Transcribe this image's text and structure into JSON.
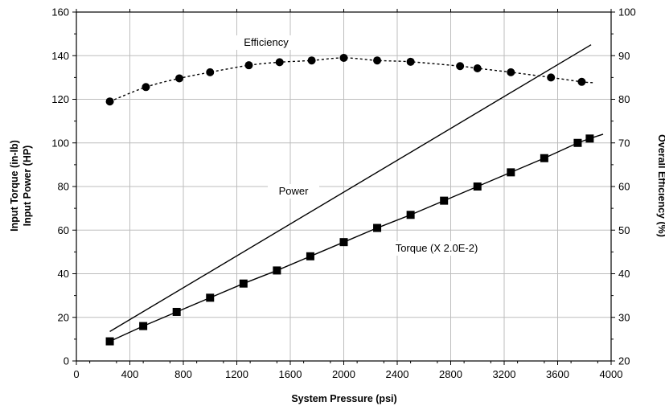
{
  "chart_data": {
    "type": "line",
    "xlabel": "System Pressure (psi)",
    "ylabel_left": [
      "Input Torque (in-lb)",
      "Input Power (HP)"
    ],
    "ylabel_right": "Overall Efficiency (%)",
    "xlim": [
      0,
      4000
    ],
    "ylim_left": [
      0,
      160
    ],
    "ylim_right": [
      20,
      100
    ],
    "x_ticks": [
      "0",
      "400",
      "800",
      "1200",
      "1600",
      "2000",
      "2400",
      "2800",
      "3200",
      "3600",
      "4000"
    ],
    "y_left_ticks": [
      "0",
      "20",
      "40",
      "60",
      "80",
      "100",
      "120",
      "140",
      "160"
    ],
    "y_right_ticks": [
      "20",
      "30",
      "40",
      "50",
      "60",
      "70",
      "80",
      "90",
      "100"
    ],
    "grid": true,
    "series": [
      {
        "name": "Efficiency",
        "axis": "right",
        "line_style": "dotted",
        "marker": "circle",
        "x": [
          250,
          520,
          770,
          1000,
          1290,
          1520,
          1760,
          2000,
          2250,
          2500,
          2870,
          3000,
          3250,
          3550,
          3780
        ],
        "y": [
          79.5,
          82.8,
          84.8,
          86.2,
          87.8,
          88.5,
          88.9,
          89.5,
          88.9,
          88.6,
          87.6,
          87.1,
          86.2,
          85.0,
          84.0
        ],
        "curve_end": {
          "x": 3870,
          "y": 83.8
        }
      },
      {
        "name": "Power",
        "axis": "left",
        "line_style": "solid",
        "marker": "none",
        "x": [
          250,
          3850
        ],
        "y": [
          13.5,
          145
        ]
      },
      {
        "name": "Torque (X 2.0E-2)",
        "axis": "left",
        "line_style": "solid",
        "marker": "square",
        "x": [
          250,
          500,
          750,
          1000,
          1250,
          1500,
          1750,
          2000,
          2250,
          2500,
          2750,
          3000,
          3250,
          3500,
          3750,
          3840
        ],
        "y": [
          9,
          16,
          22.5,
          29,
          35.5,
          41.5,
          48,
          54.5,
          61,
          67,
          73.5,
          80,
          86.5,
          93,
          100,
          102
        ],
        "line_end": {
          "x": 3940,
          "y": 104
        }
      }
    ]
  }
}
